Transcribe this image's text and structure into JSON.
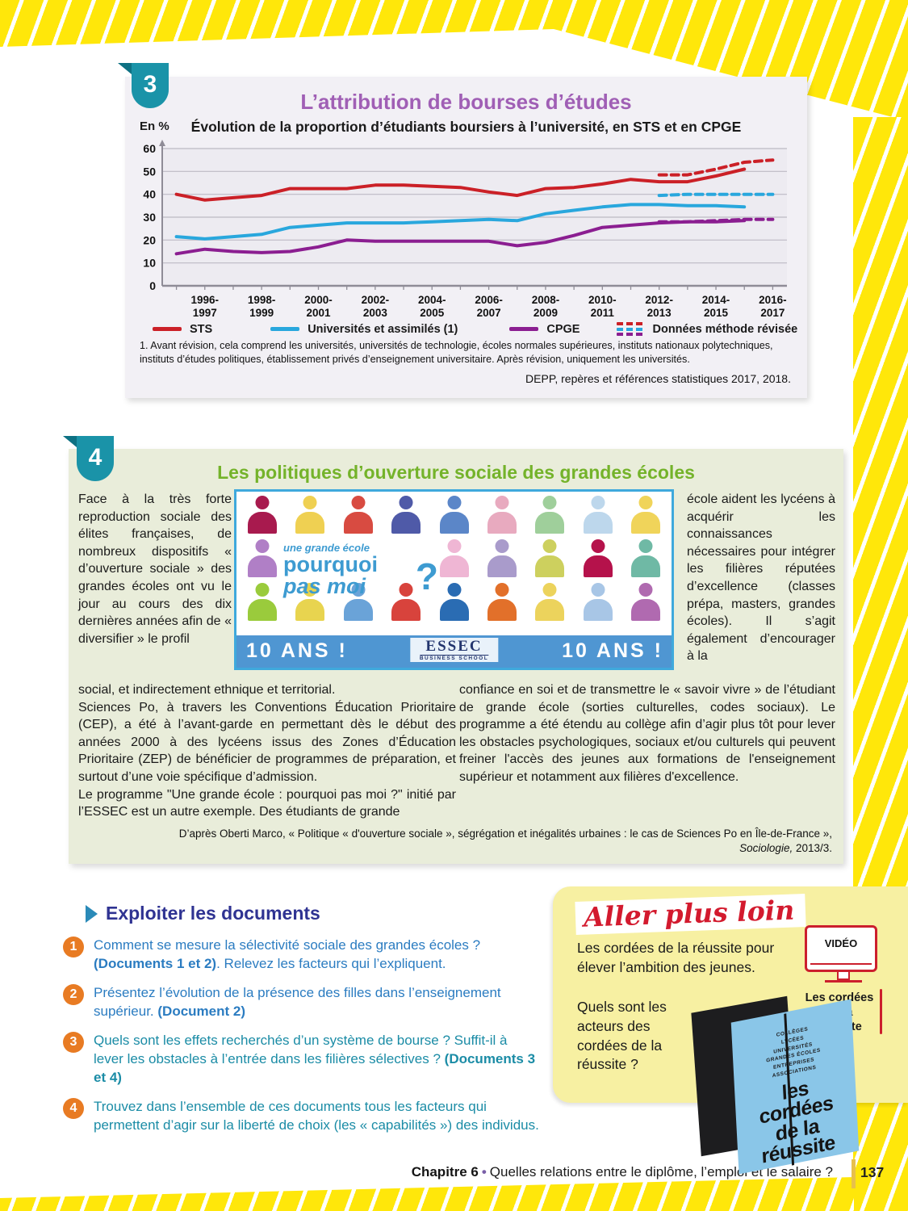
{
  "doc3": {
    "badge": "3",
    "title": "L’attribution de bourses d’études",
    "subtitle": "Évolution de la proportion d’étudiants boursiers à l’université, en STS et en CPGE",
    "y_unit": "En %",
    "footnote": "1. Avant révision, cela comprend les universités, universités de technologie, écoles normales supérieures, instituts nationaux polytechniques, instituts d’études politiques, établissement privés d’enseignement universitaire. Après révision, uniquement les universités.",
    "source": "DEPP, repères et références statistiques 2017, 2018."
  },
  "chart_data": {
    "type": "line",
    "title": "Évolution de la proportion d’étudiants boursiers à l’université, en STS et en CPGE",
    "ylabel": "En %",
    "ylim": [
      0,
      60
    ],
    "ytick_step": 10,
    "grid": true,
    "x_slots": 22,
    "x_labels": [
      "1996-1997",
      "1998-1999",
      "2000-2001",
      "2002-2003",
      "2004-2005",
      "2006-2007",
      "2008-2009",
      "2010-2011",
      "2012-2013",
      "2014-2015",
      "2016-2017"
    ],
    "series": [
      {
        "name": "STS",
        "color": "#cb2027",
        "dashed": false,
        "start_index": 0,
        "values": [
          40,
          37.5,
          38.5,
          39.5,
          42.5,
          42.5,
          42.5,
          44,
          44,
          43.5,
          43,
          41,
          39.5,
          42.5,
          43,
          44.5,
          46.5,
          45.5,
          45.5,
          48,
          51
        ]
      },
      {
        "name": "Universités et assimilés (1)",
        "color": "#29a7dd",
        "dashed": false,
        "start_index": 0,
        "values": [
          21.5,
          20.5,
          21.5,
          22.5,
          25.5,
          26.5,
          27.5,
          27.5,
          27.5,
          28,
          28.5,
          29,
          28.5,
          31.5,
          33,
          34.5,
          35.5,
          35.5,
          35,
          35,
          34.5
        ]
      },
      {
        "name": "CPGE",
        "color": "#8b1e91",
        "dashed": false,
        "start_index": 0,
        "values": [
          14,
          16,
          15,
          14.5,
          15,
          17,
          20,
          19.5,
          19.5,
          19.5,
          19.5,
          19.5,
          17.5,
          19,
          22,
          25.5,
          26.5,
          27.5,
          28,
          28,
          28.5
        ]
      },
      {
        "name": "STS (méthode révisée)",
        "color": "#cb2027",
        "dashed": true,
        "start_index": 17,
        "values": [
          48.5,
          48.5,
          51,
          54,
          55
        ]
      },
      {
        "name": "Universités (méthode révisée)",
        "color": "#29a7dd",
        "dashed": true,
        "start_index": 17,
        "values": [
          39.5,
          40,
          40,
          40,
          40
        ]
      },
      {
        "name": "CPGE (méthode révisée)",
        "dashed": true,
        "color": "#8b1e91",
        "start_index": 17,
        "values": [
          28,
          28,
          28.5,
          29,
          29
        ]
      }
    ],
    "legend_solid": [
      "STS",
      "Universités et assimilés (1)",
      "CPGE"
    ],
    "revised_label": "Données méthode révisée",
    "legend_position": "bottom"
  },
  "doc4": {
    "badge": "4",
    "title": "Les politiques d’ouverture sociale des grandes écoles",
    "col_left": "Face à la très forte reproduction sociale des élites françaises, de nombreux dispositifs « d’ouverture sociale » des grandes écoles ont vu le jour au cours des dix dernières années afin de « diversifier » le profil",
    "col_right": "école aident les lycéens à acquérir les connaissances nécessaires pour intégrer les filières réputées d’excellence (classes prépa, masters, grandes écoles). Il s’agit également d’encourager à la",
    "para1": "social, et indirectement ethnique et territorial.",
    "para2": "Sciences Po, à travers les Conventions Éducation Prioritaire (CEP), a été à l’avant-garde en permettant dès le début des années 2000 à des lycéens issus des Zones d’Éducation Prioritaire (ZEP) de bénéficier de programmes de préparation, et surtout d’une voie spécifique d’admission.",
    "para3": "Le programme \"Une grande école : pourquoi pas moi ?\" initié par l’ESSEC est un autre exemple. Des étudiants de grande",
    "para_right": "confiance en soi et de transmettre le « savoir vivre » de l’étudiant de grande école (sorties culturelles, codes sociaux). Le programme a été étendu au collège afin d’agir plus tôt pour lever les obstacles psychologiques, sociaux et/ou culturels qui peuvent freiner l'accès des jeunes aux formations de l'enseignement supérieur et notamment aux filières d'excellence.",
    "source_line1": "D’après Oberti Marco, « Politique « d'ouverture sociale », ségrégation et inégalités urbaines : le cas de Sciences Po en Île-de-France »,",
    "source_italic": "Sociologie,",
    "source_rest": " 2013/3.",
    "image": {
      "tagline_small": "une grande école",
      "tagline_line1": "pourquoi",
      "tagline_line2": "pas moi",
      "tagline_q": "?",
      "banner_left": "10 ANS !",
      "banner_right": "10 ANS !",
      "logo": "ESSEC",
      "logo_sub": "BUSINESS SCHOOL",
      "people_rows": [
        [
          "#a81a4e",
          "#efd052",
          "#d84b41",
          "#4f5aa8",
          "#5b86c8",
          "#e8aabf",
          "#9fcf9b",
          "#bdd7ec",
          "#f0d45a"
        ],
        [
          "#b07fc6",
          "",
          "",
          "",
          "#efb6d4",
          "#a99bcb",
          "#cdd05e",
          "#b5124b",
          "#6fb9a5"
        ],
        [
          "#9acb3c",
          "#e8d44f",
          "#6aa3d8",
          "#d8433c",
          "#2a6cb3",
          "#e2702a",
          "#ecd35c",
          "#a8c6e6",
          "#b06ab0"
        ]
      ]
    }
  },
  "exploiter": {
    "heading": "Exploiter les documents",
    "questions": [
      {
        "num": "1",
        "color": "#2b7cc1",
        "pre": "Comment se mesure la sélectivité sociale des grandes écoles ? ",
        "bold": "(Documents 1 et 2)",
        "post": ". Relevez les facteurs qui l’expliquent."
      },
      {
        "num": "2",
        "color": "#2b7cc1",
        "pre": "Présentez l’évolution de la présence des filles dans l’enseignement supérieur. ",
        "bold": "(Document 2)",
        "post": ""
      },
      {
        "num": "3",
        "color": "#1b8ca6",
        "pre": "Quels sont les effets recherchés d’un système de bourse ? Suffit-il à lever les obstacles à l’entrée dans les filières sélectives ? ",
        "bold": "(Documents 3 et 4)",
        "post": ""
      },
      {
        "num": "4",
        "color": "#1b8ca6",
        "pre": "Trouvez dans l’ensemble de ces documents tous les facteurs qui permettent d’agir sur la liberté de choix (les « capabilités ») des individus.",
        "bold": "",
        "post": ""
      }
    ]
  },
  "aller": {
    "title": "Aller plus loin",
    "text": "Les cordées de la réussite pour élever l’ambition des jeunes.",
    "video_label": "VIDÉO",
    "video_caption": "Les cordées\nde la réussite",
    "question": "Quels sont les acteurs des cordées de la réussite ?",
    "book_list": "COLLÈGES\nLYCÉES\nUNIVERSITÉS\nGRANDES ÉCOLES\nENTREPRISES\nASSOCIATIONS",
    "book_title": "les\ncordées\nde la\nréussite"
  },
  "footer": {
    "chapter": "Chapitre 6",
    "separator": "•",
    "title": "Quelles relations entre le diplôme, l’emploi et le salaire ?",
    "page_number": "137"
  },
  "colors": {
    "accent_teal_badge": "#1a93a8",
    "doc3_title": "#a05fb5",
    "doc4_title": "#74b32a",
    "exploiter_heading": "#2f3392",
    "question_badge": "#e87b23",
    "aller_title": "#d31a2e",
    "stripe_yellow": "#ffe70a"
  }
}
